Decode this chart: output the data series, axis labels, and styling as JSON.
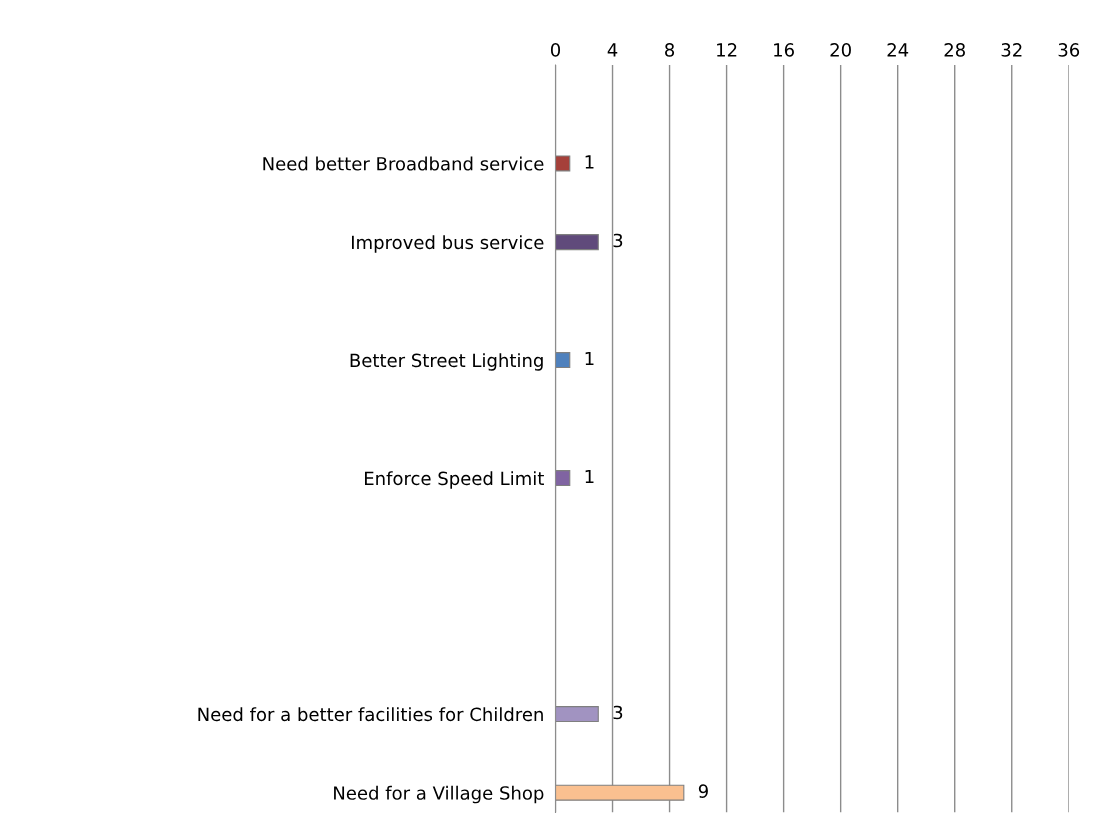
{
  "chart_data": {
    "type": "bar",
    "orientation": "horizontal",
    "categories": [
      null,
      "Need better Broadband service",
      null,
      "Improved bus service",
      null,
      null,
      "Better Street Lighting",
      null,
      null,
      "Enforce Speed Limit",
      null,
      null,
      null,
      null,
      null,
      "Need for a better facilities for Children",
      null,
      "Need for a Village Shop"
    ],
    "values": [
      null,
      1,
      null,
      3,
      null,
      null,
      1,
      null,
      null,
      1,
      null,
      null,
      null,
      null,
      null,
      3,
      null,
      9
    ],
    "colors": [
      "#888888",
      "#a5403a",
      "#888888",
      "#604a7b",
      "#888888",
      "#888888",
      "#4f81bd",
      "#888888",
      "#888888",
      "#8064a2",
      "#888888",
      "#888888",
      "#888888",
      "#888888",
      "#888888",
      "#a193c1",
      "#888888",
      "#fac090"
    ],
    "xlim": [
      0,
      36
    ],
    "xticks": [
      0,
      4,
      8,
      12,
      16,
      20,
      24,
      28,
      32,
      36
    ],
    "grid": "x",
    "data_labels": true
  }
}
